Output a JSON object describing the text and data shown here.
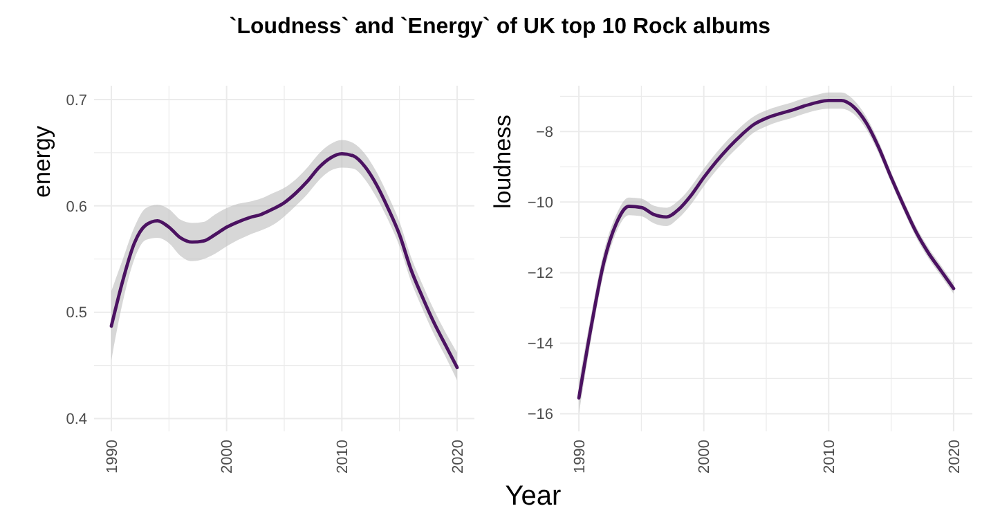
{
  "chart_data": [
    {
      "type": "line",
      "title": "`Loudness` and `Energy` of UK top 10 Rock albums",
      "xlabel": "Year",
      "ylabel": "energy",
      "grid": true,
      "marker": "none",
      "line_style": "solid",
      "x": [
        1990,
        1991,
        1992,
        1993,
        1994,
        1995,
        1996,
        1997,
        1998,
        1999,
        2000,
        2001,
        2002,
        2003,
        2004,
        2005,
        2006,
        2007,
        2008,
        2009,
        2010,
        2011,
        2012,
        2013,
        2014,
        2015,
        2016,
        2017,
        2018,
        2019,
        2020
      ],
      "xlim": [
        1988.5,
        2021.5
      ],
      "xticks": [
        1990,
        {
          "value": 1995,
          "label": null
        },
        2000,
        {
          "value": 2005,
          "label": null
        },
        2010,
        {
          "value": 2015,
          "label": null
        },
        2020
      ],
      "ylim": [
        0.388,
        0.713
      ],
      "yticks": [
        0.4,
        {
          "value": 0.45,
          "label": null
        },
        0.5,
        {
          "value": 0.55,
          "label": null
        },
        0.6,
        {
          "value": 0.65,
          "label": null
        },
        0.7
      ],
      "series": [
        {
          "color": "#4b1261",
          "values": [
            0.487,
            0.53,
            0.565,
            0.582,
            0.586,
            0.58,
            0.57,
            0.566,
            0.567,
            0.573,
            0.58,
            0.585,
            0.589,
            0.592,
            0.597,
            0.603,
            0.612,
            0.623,
            0.636,
            0.645,
            0.649,
            0.647,
            0.637,
            0.62,
            0.598,
            0.573,
            0.54,
            0.514,
            0.49,
            0.469,
            0.448
          ],
          "lower": [
            0.455,
            0.51,
            0.55,
            0.568,
            0.57,
            0.565,
            0.553,
            0.548,
            0.55,
            0.555,
            0.562,
            0.568,
            0.573,
            0.577,
            0.582,
            0.59,
            0.6,
            0.611,
            0.624,
            0.633,
            0.636,
            0.635,
            0.625,
            0.608,
            0.587,
            0.562,
            0.529,
            0.503,
            0.479,
            0.458,
            0.436
          ],
          "upper": [
            0.52,
            0.55,
            0.58,
            0.598,
            0.601,
            0.597,
            0.587,
            0.584,
            0.585,
            0.592,
            0.598,
            0.602,
            0.604,
            0.607,
            0.612,
            0.617,
            0.625,
            0.636,
            0.649,
            0.658,
            0.662,
            0.659,
            0.649,
            0.632,
            0.61,
            0.585,
            0.552,
            0.526,
            0.502,
            0.481,
            0.462
          ]
        }
      ]
    },
    {
      "type": "line",
      "ylabel": "loudness",
      "grid": true,
      "marker": "none",
      "line_style": "solid",
      "x": [
        1990,
        1991,
        1992,
        1993,
        1994,
        1995,
        1996,
        1997,
        1998,
        1999,
        2000,
        2001,
        2002,
        2003,
        2004,
        2005,
        2006,
        2007,
        2008,
        2009,
        2010,
        2011,
        2012,
        2013,
        2014,
        2015,
        2016,
        2017,
        2018,
        2019,
        2020
      ],
      "xlim": [
        1988.5,
        2021.5
      ],
      "xticks": [
        1990,
        {
          "value": 1995,
          "label": null
        },
        2000,
        {
          "value": 2005,
          "label": null
        },
        2010,
        {
          "value": 2015,
          "label": null
        },
        2020
      ],
      "ylim": [
        -16.5,
        -6.7
      ],
      "yticks": [
        {
          "value": -16,
          "label": "−16"
        },
        {
          "value": -15,
          "label": null
        },
        {
          "value": -14,
          "label": "−14"
        },
        {
          "value": -13,
          "label": null
        },
        {
          "value": -12,
          "label": "−12"
        },
        {
          "value": -11,
          "label": null
        },
        {
          "value": -10,
          "label": "−10"
        },
        {
          "value": -9,
          "label": null
        },
        {
          "value": -8,
          "label": "−8"
        },
        {
          "value": -7,
          "label": null
        }
      ],
      "series": [
        {
          "color": "#4b1261",
          "values": [
            -15.55,
            -13.5,
            -11.7,
            -10.6,
            -10.12,
            -10.15,
            -10.35,
            -10.42,
            -10.2,
            -9.8,
            -9.3,
            -8.85,
            -8.45,
            -8.1,
            -7.8,
            -7.62,
            -7.5,
            -7.4,
            -7.28,
            -7.18,
            -7.12,
            -7.12,
            -7.3,
            -7.75,
            -8.45,
            -9.3,
            -10.1,
            -10.85,
            -11.45,
            -11.95,
            -12.45
          ],
          "lower": [
            -16.0,
            -13.85,
            -12.0,
            -10.85,
            -10.37,
            -10.4,
            -10.6,
            -10.68,
            -10.45,
            -10.05,
            -9.55,
            -9.1,
            -8.7,
            -8.35,
            -8.03,
            -7.85,
            -7.72,
            -7.62,
            -7.5,
            -7.4,
            -7.35,
            -7.35,
            -7.5,
            -7.93,
            -8.62,
            -9.45,
            -10.25,
            -11.0,
            -11.6,
            -12.1,
            -12.6
          ],
          "upper": [
            -15.1,
            -13.15,
            -11.4,
            -10.35,
            -9.87,
            -9.9,
            -10.1,
            -10.16,
            -9.95,
            -9.55,
            -9.05,
            -8.6,
            -8.2,
            -7.85,
            -7.57,
            -7.4,
            -7.28,
            -7.18,
            -7.06,
            -6.96,
            -6.89,
            -6.89,
            -7.1,
            -7.57,
            -8.28,
            -9.15,
            -9.95,
            -10.7,
            -11.3,
            -11.8,
            -12.3
          ]
        }
      ]
    }
  ]
}
